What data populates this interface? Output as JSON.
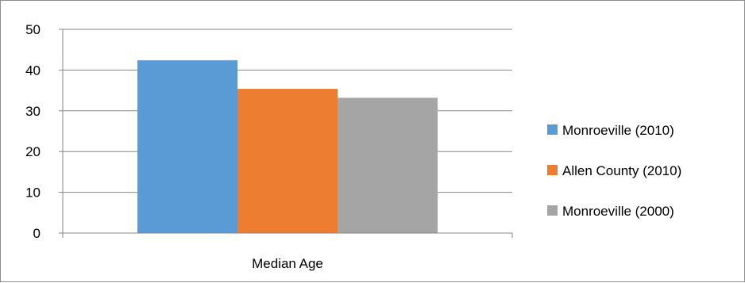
{
  "chart_data": {
    "type": "bar",
    "categories": [
      "Median Age"
    ],
    "series": [
      {
        "name": "Monroeville (2010)",
        "values": [
          42.4
        ],
        "color": "#5b9bd5"
      },
      {
        "name": "Allen County (2010)",
        "values": [
          35.4
        ],
        "color": "#ed7d31"
      },
      {
        "name": "Monroeville (2000)",
        "values": [
          33.2
        ],
        "color": "#a5a5a5"
      }
    ],
    "title": "",
    "xlabel": "",
    "ylabel": "",
    "ylim": [
      0,
      50
    ],
    "yticks": [
      "0",
      "10",
      "20",
      "30",
      "40",
      "50"
    ],
    "grid": true,
    "legend_position": "right"
  }
}
